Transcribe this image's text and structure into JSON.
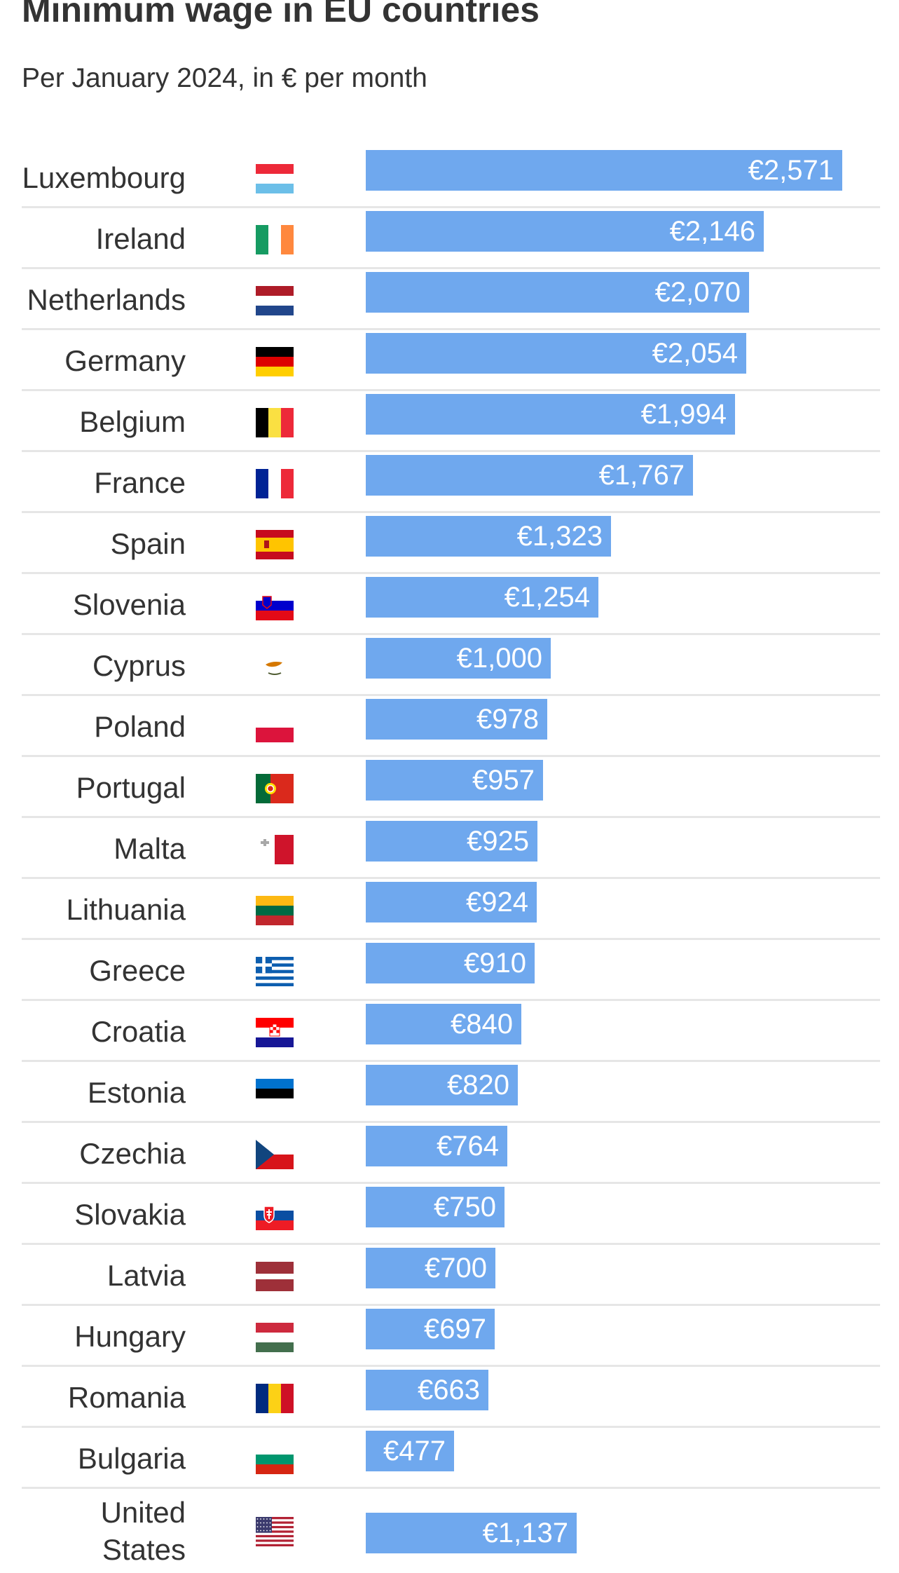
{
  "title": "Minimum wage in EU countries",
  "subtitle": "Per January 2024, in € per month",
  "colors": {
    "bar": "#6fa8ee",
    "separator": "#e6e6e6"
  },
  "chart_data": {
    "type": "bar",
    "orientation": "horizontal",
    "categories": [
      "Luxembourg",
      "Ireland",
      "Netherlands",
      "Germany",
      "Belgium",
      "France",
      "Spain",
      "Slovenia",
      "Cyprus",
      "Poland",
      "Portugal",
      "Malta",
      "Lithuania",
      "Greece",
      "Croatia",
      "Estonia",
      "Czechia",
      "Slovakia",
      "Latvia",
      "Hungary",
      "Romania",
      "Bulgaria",
      "United States"
    ],
    "values": [
      2571,
      2146,
      2070,
      2054,
      1994,
      1767,
      1323,
      1254,
      1000,
      978,
      957,
      925,
      924,
      910,
      840,
      820,
      764,
      750,
      700,
      697,
      663,
      477,
      1137
    ],
    "value_labels": [
      "€2,571",
      "€2,146",
      "€2,070",
      "€2,054",
      "€1,994",
      "€1,767",
      "€1,323",
      "€1,254",
      "€1,000",
      "€978",
      "€957",
      "€925",
      "€924",
      "€910",
      "€840",
      "€820",
      "€764",
      "€750",
      "€700",
      "€697",
      "€663",
      "€477",
      "€1,137"
    ],
    "flag_icons": [
      "luxembourg-flag-icon",
      "ireland-flag-icon",
      "netherlands-flag-icon",
      "germany-flag-icon",
      "belgium-flag-icon",
      "france-flag-icon",
      "spain-flag-icon",
      "slovenia-flag-icon",
      "cyprus-flag-icon",
      "poland-flag-icon",
      "portugal-flag-icon",
      "malta-flag-icon",
      "lithuania-flag-icon",
      "greece-flag-icon",
      "croatia-flag-icon",
      "estonia-flag-icon",
      "czechia-flag-icon",
      "slovakia-flag-icon",
      "latvia-flag-icon",
      "hungary-flag-icon",
      "romania-flag-icon",
      "bulgaria-flag-icon",
      "united-states-flag-icon"
    ],
    "xlim": [
      0,
      2571
    ],
    "grid": false,
    "legend": "none"
  }
}
